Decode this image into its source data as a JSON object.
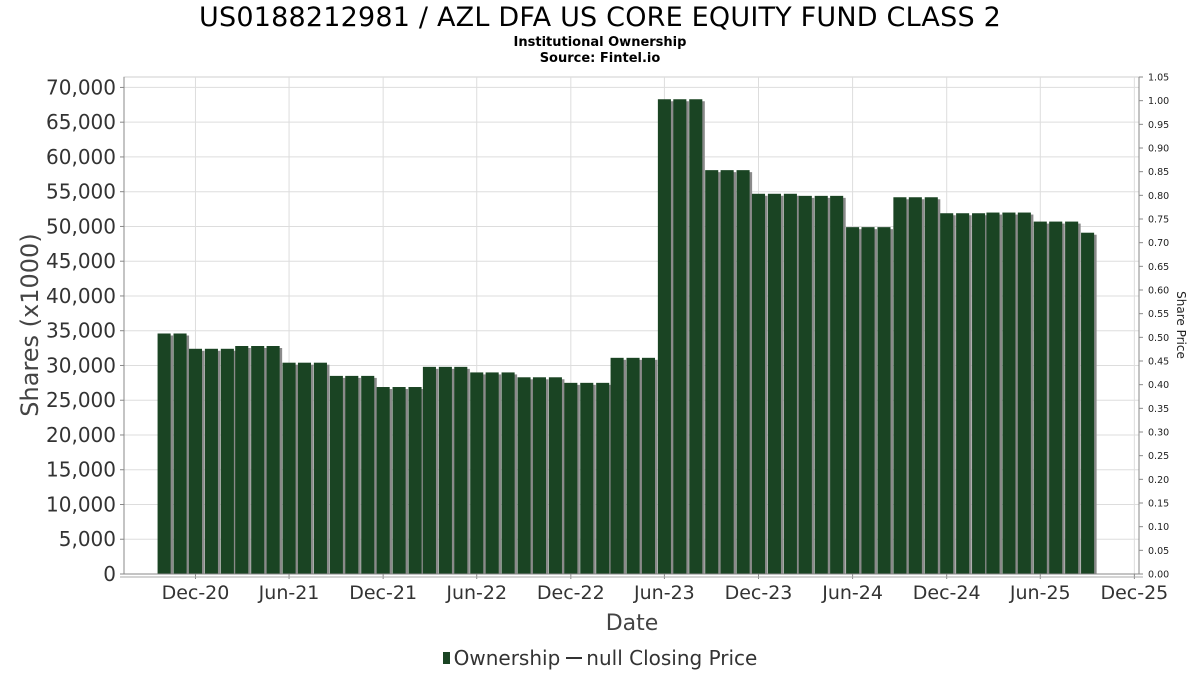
{
  "title": "US0188212981 / AZL DFA US CORE EQUITY FUND CLASS 2",
  "subtitle_1": "Institutional Ownership",
  "subtitle_2": "Source: Fintel.io",
  "legend": {
    "ownership": "Ownership",
    "price": "null Closing Price"
  },
  "colors": {
    "bar": "#1a4423",
    "bar_shadow": "#8a8a8a",
    "grid": "#dddddd",
    "axis": "#888888"
  },
  "chart_data": {
    "type": "bar",
    "title": "US0188212981 / AZL DFA US CORE EQUITY FUND CLASS 2",
    "xlabel": "Date",
    "ylabel": "Shares (x1000)",
    "y2label": "Share Price",
    "x_tick_labels": [
      "Dec-20",
      "Jun-21",
      "Dec-21",
      "Jun-22",
      "Dec-22",
      "Jun-23",
      "Dec-23",
      "Jun-24",
      "Dec-24",
      "Jun-25",
      "Dec-25"
    ],
    "x_tick_dates": [
      "2020-12-01",
      "2021-06-01",
      "2021-12-01",
      "2022-06-01",
      "2022-12-01",
      "2023-06-01",
      "2023-12-01",
      "2024-06-01",
      "2024-12-01",
      "2025-06-01",
      "2025-12-01"
    ],
    "xlim": [
      "2020-07-15",
      "2025-12-10"
    ],
    "y_ticks": [
      "0",
      "5,000",
      "10,000",
      "15,000",
      "20,000",
      "25,000",
      "30,000",
      "35,000",
      "40,000",
      "45,000",
      "50,000",
      "55,000",
      "60,000",
      "65,000",
      "70,000"
    ],
    "ylim": [
      0,
      71500
    ],
    "y2_ticks": [
      "0.00",
      "0.05",
      "0.10",
      "0.15",
      "0.20",
      "0.25",
      "0.30",
      "0.35",
      "0.40",
      "0.45",
      "0.50",
      "0.55",
      "0.60",
      "0.65",
      "0.70",
      "0.75",
      "0.80",
      "0.85",
      "0.90",
      "0.95",
      "1.00",
      "1.05"
    ],
    "y2lim": [
      0,
      1.05
    ],
    "grid": true,
    "legend_position": "bottom",
    "series": [
      {
        "name": "Ownership",
        "x": [
          "2020-10-01",
          "2020-11-01",
          "2020-12-01",
          "2021-01-01",
          "2021-02-01",
          "2021-03-01",
          "2021-04-01",
          "2021-05-01",
          "2021-06-01",
          "2021-07-01",
          "2021-08-01",
          "2021-09-01",
          "2021-10-01",
          "2021-11-01",
          "2021-12-01",
          "2022-01-01",
          "2022-02-01",
          "2022-03-01",
          "2022-04-01",
          "2022-05-01",
          "2022-06-01",
          "2022-07-01",
          "2022-08-01",
          "2022-09-01",
          "2022-10-01",
          "2022-11-01",
          "2022-12-01",
          "2023-01-01",
          "2023-02-01",
          "2023-03-01",
          "2023-04-01",
          "2023-05-01",
          "2023-06-01",
          "2023-07-01",
          "2023-08-01",
          "2023-09-01",
          "2023-10-01",
          "2023-11-01",
          "2023-12-01",
          "2024-01-01",
          "2024-02-01",
          "2024-03-01",
          "2024-04-01",
          "2024-05-01",
          "2024-06-01",
          "2024-07-01",
          "2024-08-01",
          "2024-09-01",
          "2024-10-01",
          "2024-11-01",
          "2024-12-01",
          "2025-01-01",
          "2025-02-01",
          "2025-03-01",
          "2025-04-01",
          "2025-05-01",
          "2025-06-01",
          "2025-07-01",
          "2025-08-01",
          "2025-09-01"
        ],
        "values": [
          34600,
          34600,
          32400,
          32400,
          32400,
          32800,
          32800,
          32800,
          30400,
          30400,
          30400,
          28500,
          28500,
          28500,
          26900,
          26900,
          26900,
          29800,
          29800,
          29800,
          29000,
          29000,
          29000,
          28300,
          28300,
          28300,
          27500,
          27500,
          27500,
          31100,
          31100,
          31100,
          68300,
          68300,
          68300,
          58100,
          58100,
          58100,
          54700,
          54700,
          54700,
          54400,
          54400,
          54400,
          49900,
          49900,
          49900,
          54200,
          54200,
          54200,
          51900,
          51900,
          51900,
          52000,
          52000,
          52000,
          50700,
          50700,
          50700,
          49100
        ]
      }
    ]
  }
}
